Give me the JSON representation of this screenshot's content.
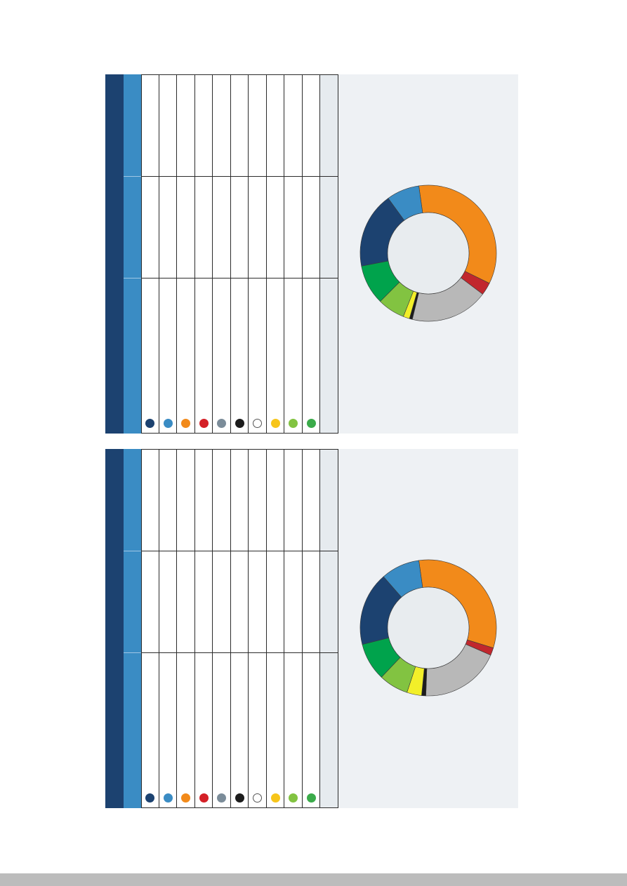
{
  "legend_colors": [
    "#1c4270",
    "#3a8cc4",
    "#f28a1a",
    "#d42027",
    "#7b8c99",
    "#1c1c1c",
    "#ffffff",
    "#f7c51a",
    "#82c341",
    "#3bab4a"
  ],
  "chart_data": [
    {
      "type": "pie",
      "donut": true,
      "title": "",
      "slices": [
        {
          "value": 34.5,
          "color": "#f28a1a"
        },
        {
          "value": 3.0,
          "color": "#c1272d"
        },
        {
          "value": 18.5,
          "color": "#b8b8b8"
        },
        {
          "value": 0.7,
          "color": "#1c1c1c"
        },
        {
          "value": 1.5,
          "color": "#f2ef29"
        },
        {
          "value": 6.5,
          "color": "#82c341"
        },
        {
          "value": 9.5,
          "color": "#00a34c"
        },
        {
          "value": 18.0,
          "color": "#1c4270"
        },
        {
          "value": 7.8,
          "color": "#3a8cc4"
        }
      ]
    },
    {
      "type": "pie",
      "donut": true,
      "title": "",
      "slices": [
        {
          "value": 32.0,
          "color": "#f28a1a"
        },
        {
          "value": 1.8,
          "color": "#c1272d"
        },
        {
          "value": 19.0,
          "color": "#b8b8b8"
        },
        {
          "value": 1.0,
          "color": "#1c1c1c"
        },
        {
          "value": 3.5,
          "color": "#f2ef29"
        },
        {
          "value": 7.0,
          "color": "#82c341"
        },
        {
          "value": 9.0,
          "color": "#00a34c"
        },
        {
          "value": 17.5,
          "color": "#1c4270"
        },
        {
          "value": 9.2,
          "color": "#3a8cc4"
        }
      ]
    }
  ]
}
